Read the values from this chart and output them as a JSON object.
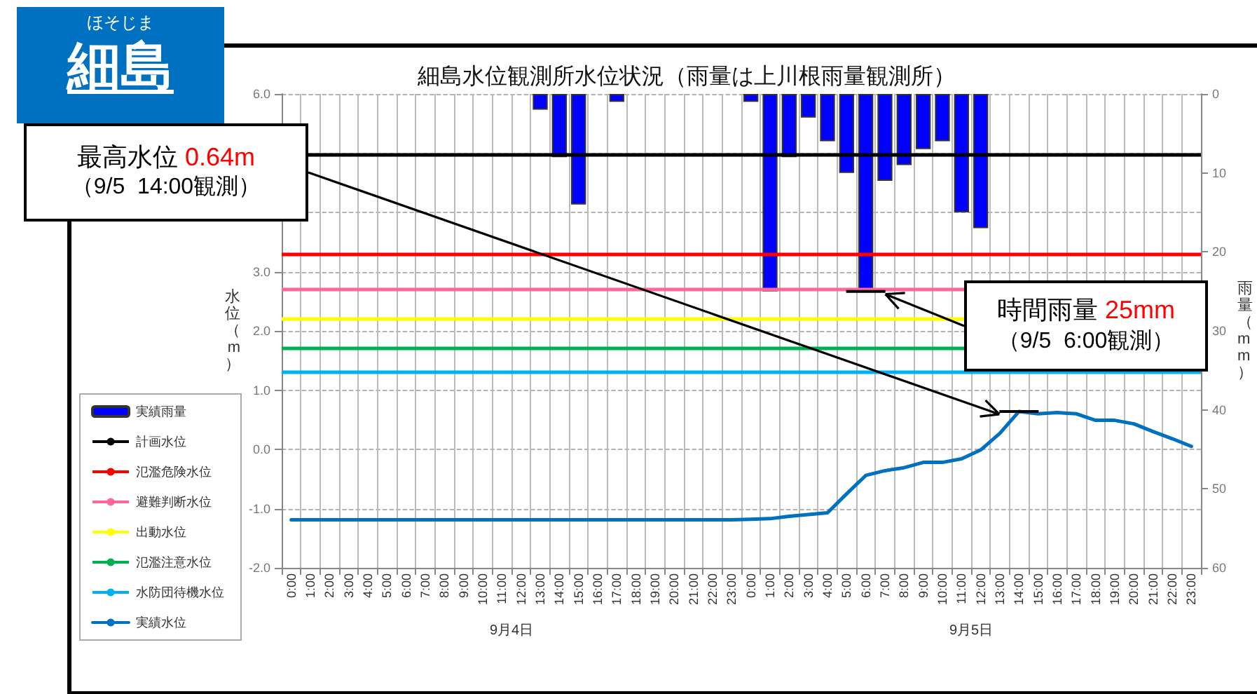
{
  "chart_data": {
    "type": "line",
    "title": "細島水位観測所水位状況（雨量は上川根雨量観測所）",
    "ylabel": "水位（m）",
    "y2label": "雨量（mm）",
    "categories": [
      "0:00",
      "1:00",
      "2:00",
      "3:00",
      "4:00",
      "5:00",
      "6:00",
      "7:00",
      "8:00",
      "9:00",
      "10:00",
      "11:00",
      "12:00",
      "13:00",
      "14:00",
      "15:00",
      "16:00",
      "17:00",
      "18:00",
      "19:00",
      "20:00",
      "21:00",
      "22:00",
      "23:00",
      "0:00",
      "1:00",
      "2:00",
      "3:00",
      "4:00",
      "5:00",
      "6:00",
      "7:00",
      "8:00",
      "9:00",
      "10:00",
      "11:00",
      "12:00",
      "13:00",
      "14:00",
      "15:00",
      "16:00",
      "17:00",
      "18:00",
      "19:00",
      "20:00",
      "21:00",
      "22:00",
      "23:00"
    ],
    "series": [
      {
        "name": "実績雨量",
        "type": "bar",
        "axis": "y2",
        "color": "#0000ff",
        "values": [
          0,
          0,
          0,
          0,
          0,
          0,
          0,
          0,
          0,
          0,
          0,
          0,
          0,
          2,
          8,
          14,
          0,
          1,
          0,
          0,
          0,
          0,
          0,
          0,
          1,
          25,
          8,
          3,
          6,
          10,
          25,
          11,
          9,
          7,
          6,
          15,
          17,
          0,
          0,
          0,
          0,
          0,
          0,
          0,
          0,
          0,
          0,
          0
        ]
      },
      {
        "name": "実績水位",
        "color": "#0070c0",
        "values": [
          -1.19,
          -1.19,
          -1.19,
          -1.19,
          -1.19,
          -1.19,
          -1.19,
          -1.19,
          -1.19,
          -1.19,
          -1.19,
          -1.19,
          -1.19,
          -1.19,
          -1.19,
          -1.19,
          -1.19,
          -1.19,
          -1.19,
          -1.19,
          -1.19,
          -1.19,
          -1.19,
          -1.19,
          -1.18,
          -1.17,
          -1.13,
          -1.1,
          -1.07,
          -0.75,
          -0.44,
          -0.36,
          -0.31,
          -0.22,
          -0.22,
          -0.16,
          -0.01,
          0.27,
          0.64,
          0.6,
          0.62,
          0.6,
          0.49,
          0.49,
          0.43,
          0.3,
          0.18,
          0.05
        ]
      }
    ],
    "ref_lines": [
      {
        "axis": "y",
        "value": 4.97,
        "label": "計画水位",
        "color": "#000000"
      },
      {
        "axis": "y",
        "value": 3.3,
        "label": "氾濫危険水位",
        "color": "#ff0000"
      },
      {
        "axis": "y",
        "value": 2.7,
        "label": "避難判断水位",
        "color": "#ff6699"
      },
      {
        "axis": "y",
        "value": 2.2,
        "label": "出動水位",
        "color": "#ffff00"
      },
      {
        "axis": "y",
        "value": 1.7,
        "label": "氾濫注意水位",
        "color": "#00b050"
      },
      {
        "axis": "y",
        "value": 1.3,
        "label": "水防団待機水位",
        "color": "#00b0f0"
      }
    ],
    "ylim": [
      -2,
      6
    ],
    "yticks": [
      {
        "value": -2,
        "label": "-2.0"
      },
      {
        "value": -1,
        "label": "-1.0"
      },
      {
        "value": 0,
        "label": "0.0"
      },
      {
        "value": 1,
        "label": "1.0"
      },
      {
        "value": 2,
        "label": "2.0"
      },
      {
        "value": 3,
        "label": "3.0"
      },
      {
        "value": 4,
        "label": null
      },
      {
        "value": 5,
        "label": null
      },
      {
        "value": 6,
        "label": "6.0"
      }
    ],
    "y2lim": [
      60,
      0
    ],
    "y2ticks": [
      0,
      10,
      20,
      30,
      40,
      50,
      60
    ],
    "grid": true,
    "legend": "left",
    "marker": "none",
    "line_style": "solid",
    "annotations": [
      "ほそじま",
      "細島",
      "9月4日",
      "9月5日",
      "最高水位 0.64m\n（9/5  14:00観測）",
      "時間雨量 25mm\n（9/5  6:00観測）"
    ]
  }
}
